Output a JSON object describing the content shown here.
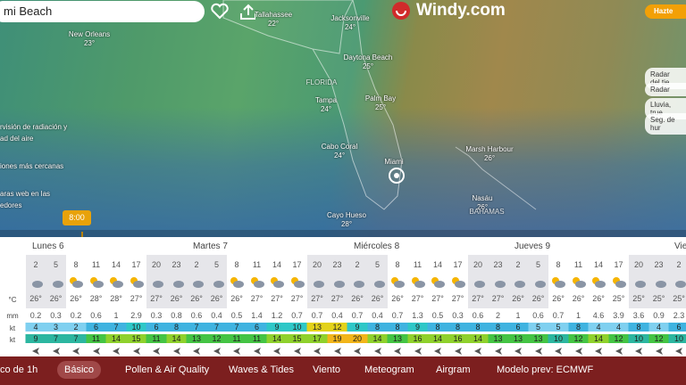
{
  "search": "mi Beach",
  "logo": "Windy.com",
  "premium": "Hazte",
  "map": {
    "labels": [
      {
        "name": "New Orleans",
        "temp": "23°"
      },
      {
        "name": "Tallahassee",
        "temp": "22°"
      },
      {
        "name": "Jacksonville",
        "temp": "24°"
      },
      {
        "name": "Daytona Beach",
        "temp": "25°"
      },
      {
        "name": "Tampa",
        "temp": "24°"
      },
      {
        "name": "Palm Bay",
        "temp": "25°"
      },
      {
        "name": "Cabo Coral",
        "temp": "24°"
      },
      {
        "name": "Marsh Harbour",
        "temp": "26°"
      },
      {
        "name": "Miami"
      },
      {
        "name": "Nasáu",
        "temp": "26°"
      },
      {
        "name": "Cayo Hueso",
        "temp": "28°"
      }
    ],
    "regions": [
      "FLORIDA",
      "BAHAMAS"
    ],
    "left_panel": [
      "rvisión de radiación y",
      "ad del aire",
      "iones más cercanas",
      "aras web en las",
      "edores"
    ],
    "right_panel": [
      "Radar del tie",
      "Radar",
      "Lluvia, true",
      "Seg. de hur"
    ],
    "time": "8:00"
  },
  "forecast": {
    "days": [
      "Lunes 6",
      "Martes 7",
      "Miércoles 8",
      "Jueves 9",
      "Vie"
    ],
    "row_labels": {
      "temp": "°C",
      "rain": "mm",
      "wind": "kt",
      "gust": "kt"
    },
    "hours": [
      2,
      5,
      8,
      11,
      14,
      17,
      20,
      23,
      2,
      5,
      8,
      11,
      14,
      17,
      20,
      23,
      2,
      5,
      8,
      11,
      14,
      17,
      20,
      23,
      2,
      5,
      8,
      11,
      14,
      17,
      20,
      23,
      2
    ],
    "temps": [
      "26°",
      "26°",
      "26°",
      "28°",
      "28°",
      "27°",
      "27°",
      "26°",
      "26°",
      "26°",
      "26°",
      "27°",
      "27°",
      "27°",
      "27°",
      "27°",
      "26°",
      "26°",
      "26°",
      "27°",
      "27°",
      "27°",
      "27°",
      "27°",
      "26°",
      "26°",
      "26°",
      "26°",
      "26°",
      "25°",
      "25°",
      "25°",
      "25°"
    ],
    "rain": [
      0.2,
      0.3,
      0.2,
      0.6,
      1,
      2.9,
      0.3,
      0.8,
      0.6,
      0.4,
      0.5,
      1.4,
      1.2,
      0.7,
      0.7,
      0.4,
      0.7,
      0.4,
      0.7,
      1.3,
      0.5,
      0.3,
      0.6,
      2,
      1,
      0.6,
      0.7,
      1,
      4.6,
      3.9,
      3.6,
      0.9,
      2.3
    ],
    "wind": [
      4,
      3,
      2,
      6,
      7,
      10,
      6,
      8,
      7,
      7,
      7,
      6,
      9,
      10,
      13,
      12,
      9,
      8,
      8,
      9,
      8,
      8,
      8,
      8,
      6,
      5,
      5,
      8,
      4,
      4,
      8,
      4,
      6
    ],
    "gust": [
      9,
      7,
      7,
      11,
      14,
      15,
      11,
      14,
      13,
      12,
      11,
      11,
      14,
      15,
      17,
      19,
      20,
      14,
      13,
      16,
      14,
      16,
      14,
      13,
      13,
      13,
      10,
      12,
      14,
      12,
      10,
      12,
      10
    ]
  },
  "bottom": {
    "interval": "co de 1h",
    "tabs": [
      "Básico",
      "Pollen & Air Quality",
      "Waves & Tides",
      "Viento",
      "Meteogram",
      "Airgram"
    ],
    "model": "Modelo prev: ECMWF"
  }
}
